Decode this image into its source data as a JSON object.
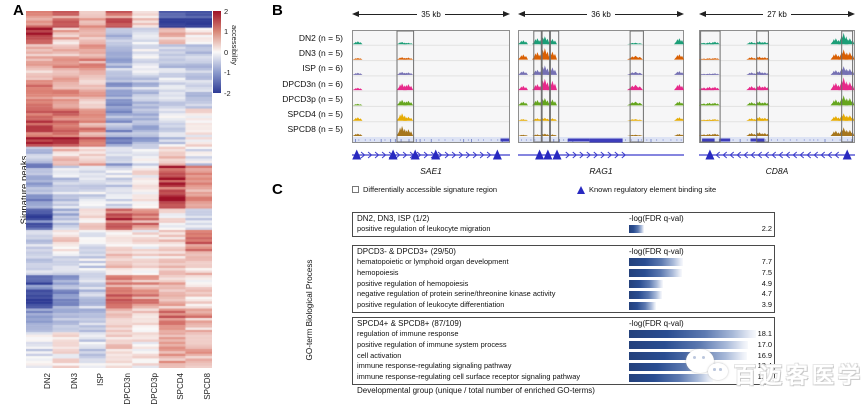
{
  "labels": {
    "a": "A",
    "b": "B",
    "c": "C"
  },
  "watermark": {
    "text": "百迈客医学",
    "icon": "wechat-logo"
  },
  "chart_data": [
    {
      "type": "heatmap",
      "title": "",
      "row_label": "Signature peaks",
      "columns": [
        "DN2",
        "DN3",
        "ISP",
        "DPCD3n",
        "DPCD3p",
        "SPCD4",
        "SPCD8"
      ],
      "colorbar": {
        "label": "accessibility",
        "ticks": [
          "2",
          "1",
          "0",
          "-1",
          "-2"
        ],
        "min": -2,
        "max": 2
      },
      "palette": {
        "positive": "#9e1127",
        "zero": "#faf9f8",
        "negative": "#2d3a94"
      },
      "n_rows": 150,
      "blocks": [
        {
          "f": 0.0,
          "v": [
            0.7,
            1.1,
            0.5,
            1.2,
            0.3,
            -1.5,
            -1.7
          ]
        },
        {
          "f": 0.045,
          "v": [
            1.6,
            0.5,
            0.5,
            -0.7,
            -0.3,
            0.4,
            0.2
          ]
        },
        {
          "f": 0.09,
          "v": [
            0.5,
            0.6,
            0.7,
            -0.6,
            -0.2,
            -0.4,
            -0.5
          ]
        },
        {
          "f": 0.18,
          "v": [
            0.8,
            0.7,
            0.5,
            -0.8,
            -0.5,
            -0.3,
            -0.4
          ]
        },
        {
          "f": 0.27,
          "v": [
            1.3,
            1.2,
            0.8,
            -0.8,
            -0.7,
            -0.3,
            0.1
          ]
        },
        {
          "f": 0.38,
          "v": [
            -0.5,
            0.4,
            0.3,
            -0.4,
            -0.1,
            0.3,
            -0.2
          ]
        },
        {
          "f": 0.43,
          "v": [
            -0.8,
            -0.4,
            -0.3,
            -0.3,
            0.1,
            1.5,
            0.8
          ]
        },
        {
          "f": 0.55,
          "v": [
            -1.6,
            -0.7,
            0.2,
            1.4,
            1.0,
            0.1,
            -0.3
          ]
        },
        {
          "f": 0.61,
          "v": [
            -0.4,
            0.2,
            -0.2,
            0.2,
            0.1,
            0.3,
            1.1
          ]
        },
        {
          "f": 0.67,
          "v": [
            -0.5,
            -0.3,
            -0.3,
            0.3,
            0.2,
            0.3,
            0.4
          ]
        },
        {
          "f": 0.74,
          "v": [
            -1.4,
            -0.8,
            -0.4,
            0.9,
            0.7,
            0.4,
            0.2
          ]
        },
        {
          "f": 0.83,
          "v": [
            -0.7,
            -0.4,
            -0.4,
            0.4,
            0.2,
            0.8,
            0.5
          ]
        },
        {
          "f": 0.9,
          "v": [
            -0.2,
            0.1,
            -0.3,
            0.3,
            0.1,
            0.7,
            0.6
          ]
        }
      ]
    },
    {
      "type": "genome_tracks",
      "tracks": [
        {
          "label": "DN2 (n = 5)",
          "color": "#1b9e77"
        },
        {
          "label": "DN3 (n = 5)",
          "color": "#d95f02"
        },
        {
          "label": "ISP (n = 6)",
          "color": "#7570b3"
        },
        {
          "label": "DPCD3n (n = 6)",
          "color": "#e7298a"
        },
        {
          "label": "DPCD3p (n = 5)",
          "color": "#66a61e"
        },
        {
          "label": "SPCD4 (n = 5)",
          "color": "#e6ab02"
        },
        {
          "label": "SPCD8 (n = 5)",
          "color": "#a6761d"
        }
      ],
      "legend": [
        {
          "symbol": "open-box",
          "label": "Differentially accessible signature region"
        },
        {
          "symbol": "blue-triangle",
          "label": "Known regulatory element binding site",
          "color": "#2829c0"
        }
      ],
      "genes": [
        {
          "name": "SAE1",
          "scale": "35 kb",
          "strand": "right",
          "boxes": [
            [
              0.285,
              0.39
            ]
          ],
          "peaks": [
            {
              "x": 0.035,
              "h": [
                0.22,
                0.12,
                0.15,
                0.18,
                0.12,
                0.25,
                0.18
              ]
            },
            {
              "x": 0.315,
              "h": [
                0.18,
                0.18,
                0.22,
                0.5,
                0.42,
                0.55,
                0.75
              ]
            },
            {
              "x": 0.355,
              "h": [
                0.12,
                0.15,
                0.18,
                0.45,
                0.35,
                0.3,
                0.5
              ]
            }
          ],
          "annotation_segments": [
            {
              "x0": 0.94,
              "x1": 0.995
            }
          ],
          "model": {
            "dir": "right",
            "chevrons": [
              0.07,
              0.9
            ],
            "triangles": [
              0.03,
              0.26,
              0.4,
              0.53,
              0.92
            ]
          }
        },
        {
          "name": "RAG1",
          "scale": "36 kb",
          "strand": "right",
          "boxes": [
            [
              0.095,
              0.14
            ],
            [
              0.145,
              0.19
            ],
            [
              0.195,
              0.245
            ],
            [
              0.675,
              0.755
            ]
          ],
          "peaks": [
            {
              "x": 0.03,
              "h": [
                0.3,
                0.38,
                0.28,
                0.32,
                0.28,
                0.12,
                0.1
              ]
            },
            {
              "x": 0.115,
              "h": [
                0.45,
                0.55,
                0.38,
                0.45,
                0.4,
                0.18,
                0.12
              ]
            },
            {
              "x": 0.16,
              "h": [
                0.6,
                0.85,
                0.7,
                0.85,
                0.55,
                0.22,
                0.18
              ]
            },
            {
              "x": 0.205,
              "h": [
                0.4,
                0.6,
                0.55,
                0.7,
                0.45,
                0.18,
                0.12
              ]
            },
            {
              "x": 0.705,
              "w": 16,
              "h": [
                0.12,
                0.28,
                0.22,
                0.4,
                0.28,
                0.12,
                0.1
              ]
            },
            {
              "x": 0.97,
              "h": [
                0.45,
                0.4,
                0.28,
                0.45,
                0.3,
                0.25,
                0.15
              ]
            }
          ],
          "annotation_segments": [
            {
              "x0": 0.3,
              "x1": 0.43
            },
            {
              "x0": 0.43,
              "x1": 0.63,
              "thick": true
            }
          ],
          "model": {
            "dir": "right",
            "chevrons": [
              0.3,
              0.67
            ],
            "triangles": [
              0.13,
              0.18,
              0.235
            ]
          }
        },
        {
          "name": "CD8A",
          "scale": "27 kb",
          "strand": "left",
          "boxes": [
            [
              0.01,
              0.135
            ],
            [
              0.37,
              0.445
            ],
            [
              0.915,
              0.985
            ]
          ],
          "peaks": [
            {
              "x": 0.03,
              "h": [
                0.12,
                0.08,
                0.08,
                0.2,
                0.15,
                0.08,
                0.12
              ]
            },
            {
              "x": 0.065,
              "h": [
                0.15,
                0.1,
                0.1,
                0.25,
                0.2,
                0.1,
                0.15
              ]
            },
            {
              "x": 0.1,
              "h": [
                0.2,
                0.12,
                0.12,
                0.25,
                0.2,
                0.12,
                0.18
              ]
            },
            {
              "x": 0.335,
              "h": [
                0.18,
                0.18,
                0.18,
                0.3,
                0.25,
                0.18,
                0.22
              ]
            },
            {
              "x": 0.385,
              "h": [
                0.22,
                0.22,
                0.28,
                0.35,
                0.3,
                0.28,
                0.28
              ]
            },
            {
              "x": 0.42,
              "h": [
                0.18,
                0.18,
                0.18,
                0.3,
                0.25,
                0.22,
                0.22
              ]
            },
            {
              "x": 0.875,
              "h": [
                0.45,
                0.45,
                0.35,
                0.55,
                0.45,
                0.35,
                0.4
              ]
            },
            {
              "x": 0.925,
              "h": [
                0.85,
                0.75,
                0.65,
                0.95,
                0.75,
                0.55,
                0.65
              ]
            },
            {
              "x": 0.965,
              "h": [
                0.45,
                0.55,
                0.45,
                0.6,
                0.55,
                0.4,
                0.45
              ]
            }
          ],
          "annotation_segments": [
            {
              "x0": 0.02,
              "x1": 0.1
            },
            {
              "x0": 0.13,
              "x1": 0.2
            },
            {
              "x0": 0.33,
              "x1": 0.42
            }
          ],
          "model": {
            "dir": "left",
            "chevrons": [
              0.12,
              0.9
            ],
            "triangles": [
              0.07,
              0.95
            ]
          }
        }
      ]
    },
    {
      "type": "bar",
      "ylabel": "GO-term Biological Process",
      "xlabel": "Developmental group (unique / total number of enriched GO-terms)",
      "axis_label": "-log(FDR q-val)",
      "bar_color": "#2a4d91",
      "groups": [
        {
          "title": "DN2, DN3, ISP (1/2)",
          "terms": [
            {
              "label": "positive regulation of leukocyte migration",
              "value": 2.2,
              "display": "2.2"
            }
          ]
        },
        {
          "title": "DPCD3- & DPCD3+ (29/50)",
          "terms": [
            {
              "label": "hematopoietic or lymphoid organ development",
              "value": 7.7,
              "display": "7.7"
            },
            {
              "label": "hemopoiesis",
              "value": 7.5,
              "display": "7.5"
            },
            {
              "label": "positive regulation of hemopoiesis",
              "value": 4.9,
              "display": "4.9"
            },
            {
              "label": "negative regulation of protein serine/threonine kinase activity",
              "value": 4.7,
              "display": "4.7"
            },
            {
              "label": "positive regulation of leukocyte differentiation",
              "value": 3.9,
              "display": "3.9"
            }
          ]
        },
        {
          "title": "SPCD4+ & SPCD8+ (87/109)",
          "terms": [
            {
              "label": "regulation of immune response",
              "value": 18.1,
              "display": "18.1"
            },
            {
              "label": "positive regulation of immune system process",
              "value": 17.0,
              "display": "17.0"
            },
            {
              "label": "cell activation",
              "value": 16.9,
              "display": "16.9"
            },
            {
              "label": "immune response-regulating signaling pathway",
              "value": 13.4,
              "display": "13.4"
            },
            {
              "label": "immune response-regulating cell surface receptor signaling pathway",
              "value": 12.0,
              "display": "12.0"
            }
          ]
        }
      ]
    }
  ]
}
